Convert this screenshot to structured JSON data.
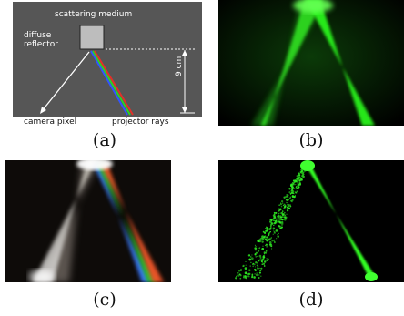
{
  "figure": {
    "panel_a": {
      "medium_label": "scattering medium",
      "reflector_label_line1": "diffuse",
      "reflector_label_line2": "reflector",
      "distance_label": "9 cm",
      "camera_label": "camera pixel",
      "projector_label": "projector rays"
    },
    "captions": [
      "(a)",
      "(b)",
      "(c)",
      "(d)"
    ]
  },
  "colors": {
    "medium_gray": "#555555",
    "laser_green": "#2aff1a",
    "background_black": "#000000"
  }
}
